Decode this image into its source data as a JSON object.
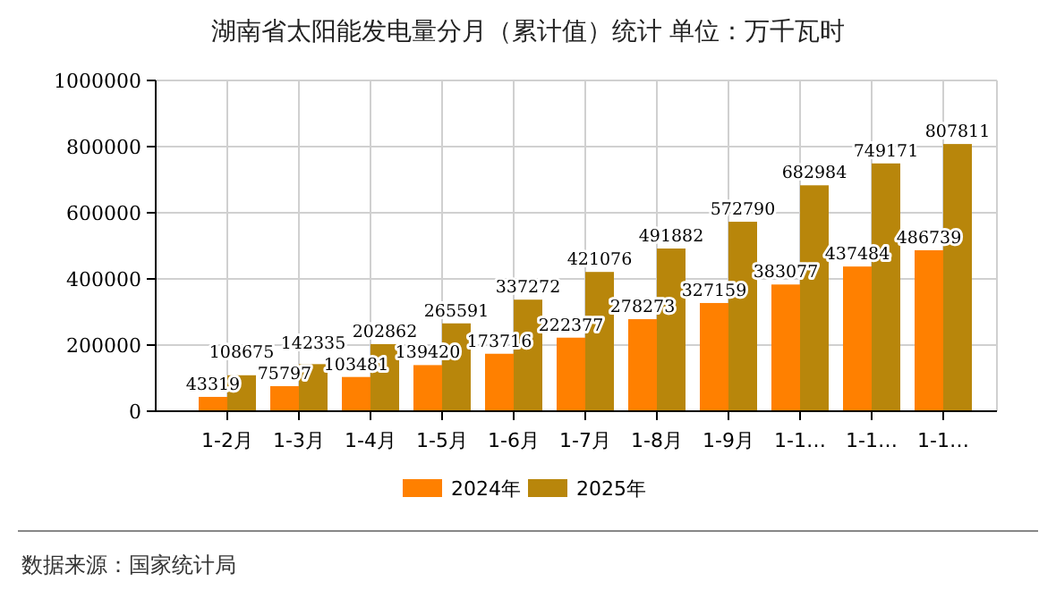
{
  "chart_data": {
    "type": "bar",
    "title": "湖南省太阳能发电量分月（累计值）统计  单位：万千瓦时",
    "categories": [
      "1-2月",
      "1-3月",
      "1-4月",
      "1-5月",
      "1-6月",
      "1-7月",
      "1-8月",
      "1-9月",
      "1-1…",
      "1-1…",
      "1-1…"
    ],
    "series": [
      {
        "name": "2024年",
        "color": "#ff8000",
        "values": [
          43319,
          75797,
          103481,
          139420,
          173716,
          222377,
          278273,
          327159,
          383077,
          437484,
          486739
        ]
      },
      {
        "name": "2025年",
        "color": "#b8860b",
        "values": [
          108675,
          142335,
          202862,
          265591,
          337272,
          421076,
          491882,
          572790,
          682984,
          749171,
          807811
        ]
      }
    ],
    "ylim": [
      0,
      1000000
    ],
    "yticks": [
      0,
      200000,
      400000,
      600000,
      800000,
      1000000
    ],
    "grid": true,
    "legend": "bottom",
    "data_labels": true,
    "annotations": [
      "数据来源：国家统计局"
    ]
  }
}
